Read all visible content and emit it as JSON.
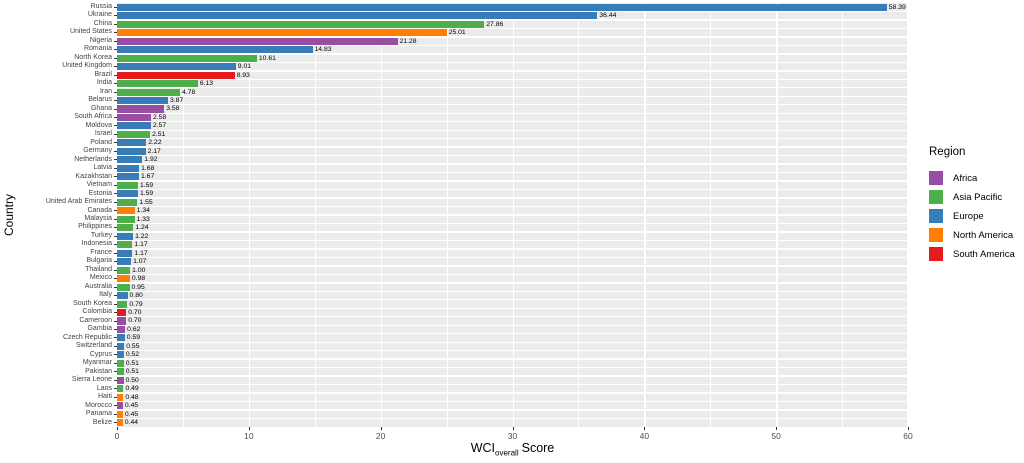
{
  "y_axis": {
    "title": "Country"
  },
  "x_axis": {
    "title_main": "WCI",
    "title_sub": "overall",
    "title_rest": "Score",
    "ticks": [
      0,
      10,
      20,
      30,
      40,
      50,
      60
    ]
  },
  "legend": {
    "title": "Region",
    "items": [
      "Africa",
      "Asia Pacific",
      "Europe",
      "North America",
      "South America"
    ]
  },
  "colors": {
    "panel_bg": "#EBEBEB",
    "grid": "#FFFFFF",
    "axis_text": "#4D4D4D",
    "tick": "#333333",
    "bar_label": "#000000"
  },
  "chart_data": {
    "type": "bar",
    "orientation": "horizontal",
    "xlabel": "WCI_overall Score",
    "ylabel": "Country",
    "xlim": [
      0,
      60
    ],
    "grid": {
      "major_every": 10,
      "minor_every": 5,
      "gridlines_on": true
    },
    "legend_position": "right",
    "region_colors": {
      "Africa": "#984EA3",
      "Asia Pacific": "#4DAF4A",
      "Europe": "#377EB8",
      "North America": "#FF7F00",
      "South America": "#E41A1C"
    },
    "countries": [
      {
        "name": "Russia",
        "value": 58.39,
        "region": "Europe"
      },
      {
        "name": "Ukraine",
        "value": 36.44,
        "region": "Europe"
      },
      {
        "name": "China",
        "value": 27.86,
        "region": "Asia Pacific"
      },
      {
        "name": "United States",
        "value": 25.01,
        "region": "North America"
      },
      {
        "name": "Nigeria",
        "value": 21.28,
        "region": "Africa"
      },
      {
        "name": "Romania",
        "value": 14.83,
        "region": "Europe"
      },
      {
        "name": "North Korea",
        "value": 10.61,
        "region": "Asia Pacific"
      },
      {
        "name": "United Kingdom",
        "value": 9.01,
        "region": "Europe"
      },
      {
        "name": "Brazil",
        "value": 8.93,
        "region": "South America"
      },
      {
        "name": "India",
        "value": 6.13,
        "region": "Asia Pacific"
      },
      {
        "name": "Iran",
        "value": 4.78,
        "region": "Asia Pacific"
      },
      {
        "name": "Belarus",
        "value": 3.87,
        "region": "Europe"
      },
      {
        "name": "Ghana",
        "value": 3.58,
        "region": "Africa"
      },
      {
        "name": "South Africa",
        "value": 2.58,
        "region": "Africa"
      },
      {
        "name": "Moldova",
        "value": 2.57,
        "region": "Europe"
      },
      {
        "name": "Israel",
        "value": 2.51,
        "region": "Asia Pacific"
      },
      {
        "name": "Poland",
        "value": 2.22,
        "region": "Europe"
      },
      {
        "name": "Germany",
        "value": 2.17,
        "region": "Europe"
      },
      {
        "name": "Netherlands",
        "value": 1.92,
        "region": "Europe"
      },
      {
        "name": "Latvia",
        "value": 1.68,
        "region": "Europe"
      },
      {
        "name": "Kazakhstan",
        "value": 1.67,
        "region": "Europe"
      },
      {
        "name": "Vietnam",
        "value": 1.59,
        "region": "Asia Pacific"
      },
      {
        "name": "Estonia",
        "value": 1.59,
        "region": "Europe"
      },
      {
        "name": "United Arab Emirates",
        "value": 1.55,
        "region": "Asia Pacific"
      },
      {
        "name": "Canada",
        "value": 1.34,
        "region": "North America"
      },
      {
        "name": "Malaysia",
        "value": 1.33,
        "region": "Asia Pacific"
      },
      {
        "name": "Philippines",
        "value": 1.24,
        "region": "Asia Pacific"
      },
      {
        "name": "Turkey",
        "value": 1.22,
        "region": "Europe"
      },
      {
        "name": "Indonesia",
        "value": 1.17,
        "region": "Asia Pacific"
      },
      {
        "name": "France",
        "value": 1.17,
        "region": "Europe"
      },
      {
        "name": "Bulgaria",
        "value": 1.07,
        "region": "Europe"
      },
      {
        "name": "Thailand",
        "value": 1.0,
        "region": "Asia Pacific"
      },
      {
        "name": "Mexico",
        "value": 0.98,
        "region": "North America"
      },
      {
        "name": "Australia",
        "value": 0.95,
        "region": "Asia Pacific"
      },
      {
        "name": "Italy",
        "value": 0.8,
        "region": "Europe"
      },
      {
        "name": "South Korea",
        "value": 0.79,
        "region": "Asia Pacific"
      },
      {
        "name": "Colombia",
        "value": 0.7,
        "region": "South America"
      },
      {
        "name": "Cameroon",
        "value": 0.7,
        "region": "Africa"
      },
      {
        "name": "Gambia",
        "value": 0.62,
        "region": "Africa"
      },
      {
        "name": "Czech Republic",
        "value": 0.59,
        "region": "Europe"
      },
      {
        "name": "Switzerland",
        "value": 0.55,
        "region": "Europe"
      },
      {
        "name": "Cyprus",
        "value": 0.52,
        "region": "Europe"
      },
      {
        "name": "Myanmar",
        "value": 0.51,
        "region": "Asia Pacific"
      },
      {
        "name": "Pakistan",
        "value": 0.51,
        "region": "Asia Pacific"
      },
      {
        "name": "Sierra Leone",
        "value": 0.5,
        "region": "Africa"
      },
      {
        "name": "Laos",
        "value": 0.49,
        "region": "Asia Pacific"
      },
      {
        "name": "Haiti",
        "value": 0.48,
        "region": "North America"
      },
      {
        "name": "Morocco",
        "value": 0.45,
        "region": "Africa"
      },
      {
        "name": "Panama",
        "value": 0.45,
        "region": "North America"
      },
      {
        "name": "Belize",
        "value": 0.44,
        "region": "North America"
      }
    ]
  }
}
